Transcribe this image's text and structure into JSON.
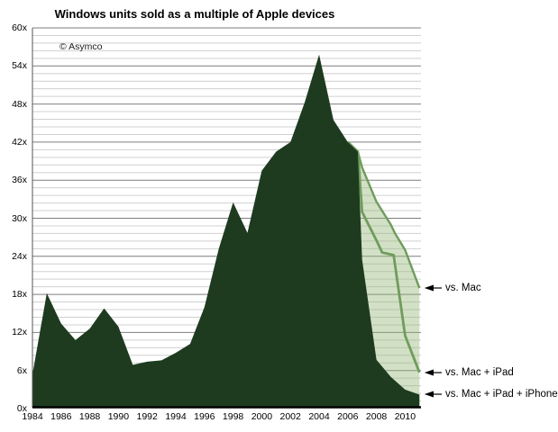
{
  "page": {
    "title": "Windows units sold as a multiple of Apple devices",
    "watermark": "© Asymco"
  },
  "chart_data": {
    "type": "area",
    "title": "Windows units sold as a multiple of Apple devices",
    "watermark": "© Asymco",
    "xlabel": "",
    "ylabel": "",
    "xlim": [
      1984,
      2011.2
    ],
    "ylim": [
      0,
      60
    ],
    "grid": "horizontal major every 6x, minor every 1.2x",
    "legend_position": "right-side arrow annotations",
    "y_ticks": [
      0,
      6,
      12,
      18,
      24,
      30,
      36,
      42,
      48,
      54,
      60
    ],
    "y_tick_labels": [
      "0x",
      "6x",
      "12x",
      "18x",
      "24x",
      "30x",
      "36x",
      "42x",
      "48x",
      "54x",
      "60x"
    ],
    "x_ticks": [
      1984,
      1986,
      1988,
      1990,
      1992,
      1994,
      1996,
      1998,
      2000,
      2002,
      2004,
      2006,
      2008,
      2010
    ],
    "x_tick_labels": [
      "1984",
      "1986",
      "1988",
      "1990",
      "1992",
      "1994",
      "1996",
      "1998",
      "2000",
      "2002",
      "2004",
      "2006",
      "2008",
      "2010"
    ],
    "series": [
      {
        "name": "vs. Mac",
        "type": "area",
        "fill": "rgba(148,180,118,0.42)",
        "stroke": "#6f9c5c",
        "points": [
          [
            2006,
            42.0
          ],
          [
            2006.7,
            40.5
          ],
          [
            2007,
            38.0
          ],
          [
            2008,
            32.6
          ],
          [
            2009,
            29.0
          ],
          [
            2009.3,
            27.6
          ],
          [
            2010,
            25.0
          ],
          [
            2011,
            19.0
          ]
        ]
      },
      {
        "name": "vs. Mac + iPad",
        "type": "line",
        "stroke": "#6f9c5c",
        "points": [
          [
            2006,
            42.0
          ],
          [
            2006.7,
            40.5
          ],
          [
            2007,
            31.0
          ],
          [
            2008,
            26.5
          ],
          [
            2008.4,
            24.6
          ],
          [
            2009.2,
            24.2
          ],
          [
            2010,
            11.5
          ],
          [
            2011,
            5.7
          ]
        ]
      },
      {
        "name": "vs. Mac + iPad + iPhone",
        "type": "area",
        "fill": "#1e3b20",
        "points": [
          [
            1984,
            5.4
          ],
          [
            1985,
            18.2
          ],
          [
            1986,
            13.4
          ],
          [
            1987,
            10.8
          ],
          [
            1988,
            12.6
          ],
          [
            1989,
            15.8
          ],
          [
            1990,
            12.9
          ],
          [
            1991,
            6.9
          ],
          [
            1992,
            7.4
          ],
          [
            1993,
            7.6
          ],
          [
            1994,
            8.8
          ],
          [
            1995,
            10.2
          ],
          [
            1996,
            16.0
          ],
          [
            1997,
            25.2
          ],
          [
            1998,
            32.5
          ],
          [
            1999,
            27.7
          ],
          [
            2000,
            37.5
          ],
          [
            2001,
            40.5
          ],
          [
            2002,
            42.0
          ],
          [
            2003,
            48.3
          ],
          [
            2004,
            55.8
          ],
          [
            2005,
            45.5
          ],
          [
            2006,
            42.0
          ],
          [
            2006.7,
            40.5
          ],
          [
            2007,
            23.5
          ],
          [
            2008,
            7.7
          ],
          [
            2009,
            5.0
          ],
          [
            2010,
            3.0
          ],
          [
            2011,
            2.2
          ]
        ]
      }
    ],
    "annotations": [
      {
        "label": "vs. Mac",
        "year": 2011,
        "value": 19.0
      },
      {
        "label": "vs. Mac + iPad",
        "year": 2011,
        "value": 5.7
      },
      {
        "label": "vs. Mac + iPad + iPhone",
        "year": 2011,
        "value": 2.2
      }
    ],
    "colors": {
      "dark_green": "#1e3b20",
      "medium_green": "#6f9c5c",
      "light_green_fill": "rgba(148,180,118,0.42)",
      "grid_major": "#7f7f7f",
      "grid_minor": "#d0d0d0",
      "axis": "#000000",
      "annotation_arrow": "#000000"
    }
  }
}
